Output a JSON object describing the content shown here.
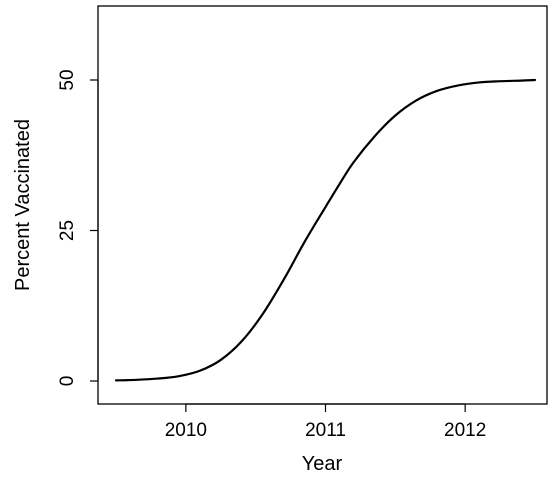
{
  "chart_data": {
    "type": "line",
    "title": "",
    "xlabel": "Year",
    "ylabel": "Percent Vaccinated",
    "xlim": [
      2009.5,
      2012.5
    ],
    "ylim": [
      0,
      50
    ],
    "x_ticks": [
      2010,
      2011,
      2012
    ],
    "x_tick_labels": [
      "2010",
      "2011",
      "2012"
    ],
    "y_ticks": [
      0,
      25,
      50
    ],
    "y_tick_labels": [
      "0",
      "25",
      "50"
    ],
    "grid": false,
    "legend": "none",
    "line_color": "#000000",
    "series": [
      {
        "x": [
          2009.5,
          2009.65,
          2009.8,
          2009.95,
          2010.1,
          2010.25,
          2010.4,
          2010.55,
          2010.7,
          2010.85,
          2011.0,
          2011.1,
          2011.2,
          2011.35,
          2011.5,
          2011.65,
          2011.8,
          2011.95,
          2012.1,
          2012.25,
          2012.4,
          2012.5
        ],
        "values": [
          0.1,
          0.2,
          0.4,
          0.8,
          1.7,
          3.5,
          6.6,
          11.1,
          16.8,
          23.1,
          28.9,
          32.7,
          36.3,
          40.6,
          44.1,
          46.6,
          48.2,
          49.1,
          49.6,
          49.8,
          49.9,
          50.0
        ]
      }
    ]
  }
}
